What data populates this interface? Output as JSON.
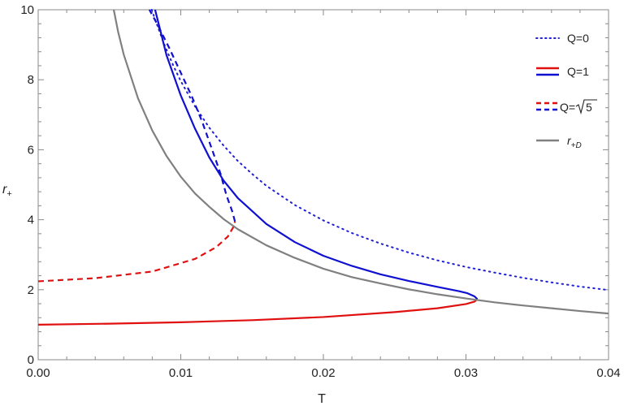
{
  "chart_data": {
    "type": "line",
    "xlabel": "T",
    "ylabel_main": "r",
    "ylabel_sub": "+",
    "xlim": [
      0,
      0.04
    ],
    "ylim": [
      0,
      10
    ],
    "x_ticks": [
      {
        "value": 0,
        "label": "0.00"
      },
      {
        "value": 0.01,
        "label": "0.01"
      },
      {
        "value": 0.02,
        "label": "0.02"
      },
      {
        "value": 0.03,
        "label": "0.03"
      },
      {
        "value": 0.04,
        "label": "0.04"
      }
    ],
    "y_ticks": [
      {
        "value": 0,
        "label": "0"
      },
      {
        "value": 2,
        "label": "2"
      },
      {
        "value": 4,
        "label": "4"
      },
      {
        "value": 6,
        "label": "6"
      },
      {
        "value": 8,
        "label": "8"
      },
      {
        "value": 10,
        "label": "10"
      }
    ],
    "grid": false,
    "legend_position": "top-right",
    "legend": [
      {
        "label": "Q=0",
        "styles": [
          {
            "color": "#1f1fd6",
            "dash": "dotted"
          }
        ]
      },
      {
        "label": "Q=1",
        "styles": [
          {
            "color": "#e01010",
            "dash": "solid"
          },
          {
            "color": "#1010d0",
            "dash": "solid"
          }
        ]
      },
      {
        "label_prefix": "Q=",
        "label_radicand": "5",
        "styles": [
          {
            "color": "#e01010",
            "dash": "dashed"
          },
          {
            "color": "#1010d0",
            "dash": "dashed"
          }
        ]
      },
      {
        "label_main": "r",
        "label_sub": "+D",
        "styles": [
          {
            "color": "#808080",
            "dash": "solid"
          }
        ]
      }
    ],
    "series": [
      {
        "color": "#1f1fd6",
        "dash": "dotted",
        "points": [
          [
            0.00796,
            10
          ],
          [
            0.0084,
            9.5
          ],
          [
            0.0088,
            9.05
          ],
          [
            0.0095,
            8.38
          ],
          [
            0.01,
            7.96
          ],
          [
            0.011,
            7.24
          ],
          [
            0.012,
            6.63
          ],
          [
            0.013,
            6.12
          ],
          [
            0.014,
            5.68
          ],
          [
            0.015,
            5.31
          ],
          [
            0.016,
            4.97
          ],
          [
            0.018,
            4.42
          ],
          [
            0.02,
            3.98
          ],
          [
            0.022,
            3.62
          ],
          [
            0.024,
            3.32
          ],
          [
            0.026,
            3.06
          ],
          [
            0.028,
            2.84
          ],
          [
            0.03,
            2.65
          ],
          [
            0.032,
            2.49
          ],
          [
            0.034,
            2.34
          ],
          [
            0.036,
            2.21
          ],
          [
            0.038,
            2.09
          ],
          [
            0.04,
            1.99
          ]
        ]
      },
      {
        "color": "#e01010",
        "dash": "solid",
        "points": [
          [
            0,
            1.0
          ],
          [
            0.005,
            1.03
          ],
          [
            0.01,
            1.07
          ],
          [
            0.015,
            1.13
          ],
          [
            0.02,
            1.22
          ],
          [
            0.025,
            1.36
          ],
          [
            0.028,
            1.47
          ],
          [
            0.03,
            1.59
          ],
          [
            0.0306,
            1.66
          ],
          [
            0.0308,
            1.73
          ]
        ]
      },
      {
        "color": "#1010d0",
        "dash": "solid",
        "points": [
          [
            0.0308,
            1.73
          ],
          [
            0.0306,
            1.81
          ],
          [
            0.0301,
            1.9
          ],
          [
            0.0295,
            1.96
          ],
          [
            0.029,
            2.0
          ],
          [
            0.028,
            2.08
          ],
          [
            0.026,
            2.25
          ],
          [
            0.024,
            2.44
          ],
          [
            0.022,
            2.68
          ],
          [
            0.02,
            2.97
          ],
          [
            0.018,
            3.36
          ],
          [
            0.016,
            3.88
          ],
          [
            0.014,
            4.62
          ],
          [
            0.013,
            5.12
          ],
          [
            0.012,
            5.78
          ],
          [
            0.011,
            6.6
          ],
          [
            0.01,
            7.55
          ],
          [
            0.009,
            8.7
          ],
          [
            0.0082,
            10.0
          ]
        ]
      },
      {
        "color": "#e01010",
        "dash": "dashed",
        "points": [
          [
            0,
            2.24
          ],
          [
            0.004,
            2.33
          ],
          [
            0.008,
            2.52
          ],
          [
            0.011,
            2.88
          ],
          [
            0.0125,
            3.22
          ],
          [
            0.0133,
            3.52
          ],
          [
            0.0137,
            3.8
          ],
          [
            0.0138,
            3.95
          ]
        ]
      },
      {
        "color": "#1010d0",
        "dash": "dashed",
        "points": [
          [
            0.0138,
            3.95
          ],
          [
            0.0136,
            4.25
          ],
          [
            0.0132,
            4.7
          ],
          [
            0.0128,
            5.3
          ],
          [
            0.0122,
            6.0
          ],
          [
            0.0115,
            6.8
          ],
          [
            0.0108,
            7.5
          ],
          [
            0.01,
            8.2
          ],
          [
            0.0092,
            8.9
          ],
          [
            0.0084,
            9.55
          ],
          [
            0.0078,
            10.0
          ]
        ]
      },
      {
        "color": "#808080",
        "dash": "solid",
        "points": [
          [
            0.0053,
            10.0
          ],
          [
            0.0056,
            9.38
          ],
          [
            0.006,
            8.72
          ],
          [
            0.007,
            7.47
          ],
          [
            0.008,
            6.55
          ],
          [
            0.009,
            5.82
          ],
          [
            0.01,
            5.23
          ],
          [
            0.011,
            4.75
          ],
          [
            0.012,
            4.37
          ],
          [
            0.013,
            4.02
          ],
          [
            0.014,
            3.73
          ],
          [
            0.016,
            3.27
          ],
          [
            0.018,
            2.91
          ],
          [
            0.02,
            2.6
          ],
          [
            0.022,
            2.36
          ],
          [
            0.024,
            2.18
          ],
          [
            0.026,
            2.01
          ],
          [
            0.028,
            1.87
          ],
          [
            0.03,
            1.75
          ],
          [
            0.032,
            1.64
          ],
          [
            0.034,
            1.55
          ],
          [
            0.036,
            1.47
          ],
          [
            0.038,
            1.39
          ],
          [
            0.04,
            1.32
          ]
        ]
      }
    ]
  }
}
